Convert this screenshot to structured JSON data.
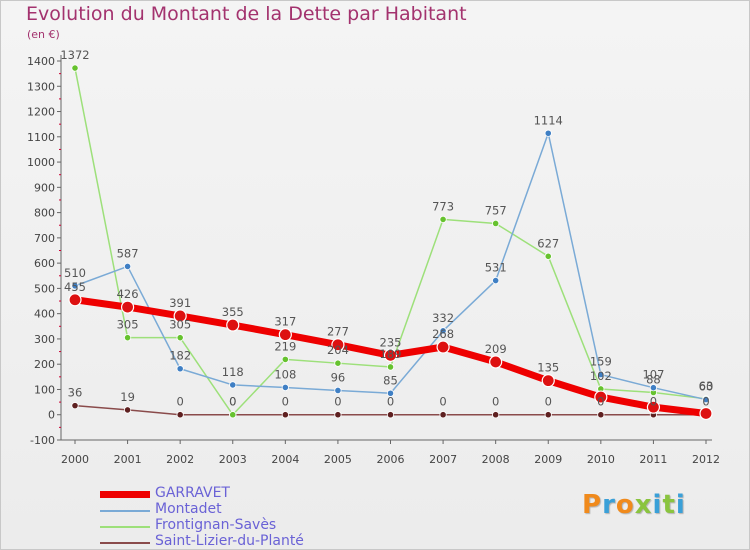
{
  "title": "Evolution du Montant de la Dette par Habitant",
  "unit_label": "(en €)",
  "brand": "Proxiti",
  "colors": {
    "title": "#a3326e",
    "legend_text": "#6a62d6",
    "axis": "#555555"
  },
  "chart_data": {
    "type": "line",
    "title": "Evolution du Montant de la Dette par Habitant",
    "ylabel": "(en €)",
    "ylim": [
      -100,
      1400
    ],
    "yticks": [
      -100,
      0,
      100,
      200,
      300,
      400,
      500,
      600,
      700,
      800,
      900,
      1000,
      1100,
      1200,
      1300,
      1400
    ],
    "x": [
      "2000",
      "2001",
      "2002",
      "2003",
      "2004",
      "2005",
      "2006",
      "2007",
      "2008",
      "2009",
      "2010",
      "2011",
      "2012"
    ],
    "legend_position": "bottom-left",
    "series": [
      {
        "name": "GARRAVET",
        "color": "#ee0000",
        "point_color": "#dd1111",
        "width": 7,
        "values": [
          455,
          426,
          391,
          355,
          317,
          277,
          235,
          268,
          209,
          135,
          70,
          30,
          5
        ],
        "labels": [
          "455",
          "426",
          "391",
          "355",
          "317",
          "277",
          "235",
          "268",
          "209",
          "135",
          "",
          "",
          ""
        ]
      },
      {
        "name": "Montadet",
        "color": "#7aaad6",
        "point_color": "#3f7fc4",
        "width": 1.5,
        "values": [
          510,
          587,
          182,
          118,
          108,
          96,
          85,
          332,
          531,
          1114,
          159,
          107,
          60
        ],
        "labels": [
          "510",
          "587",
          "182",
          "118",
          "108",
          "96",
          "85",
          "332",
          "531",
          "1114",
          "159",
          "107",
          "60"
        ]
      },
      {
        "name": "Frontignan-Savès",
        "color": "#9de07a",
        "point_color": "#66c22e",
        "width": 1.5,
        "values": [
          1372,
          305,
          305,
          0,
          219,
          204,
          189,
          773,
          757,
          627,
          102,
          88,
          63
        ],
        "labels": [
          "1372",
          "305",
          "305",
          "0",
          "219",
          "204",
          "189",
          "773",
          "757",
          "627",
          "102",
          "88",
          "63"
        ]
      },
      {
        "name": "Saint-Lizier-du-Planté",
        "color": "#8a4b4b",
        "point_color": "#5e2020",
        "width": 1.5,
        "values": [
          36,
          19,
          0,
          0,
          0,
          0,
          0,
          0,
          0,
          0,
          0,
          0,
          0
        ],
        "labels": [
          "36",
          "19",
          "0",
          "0",
          "0",
          "0",
          "0",
          "0",
          "0",
          "0",
          "0",
          "0",
          "0"
        ]
      }
    ]
  }
}
